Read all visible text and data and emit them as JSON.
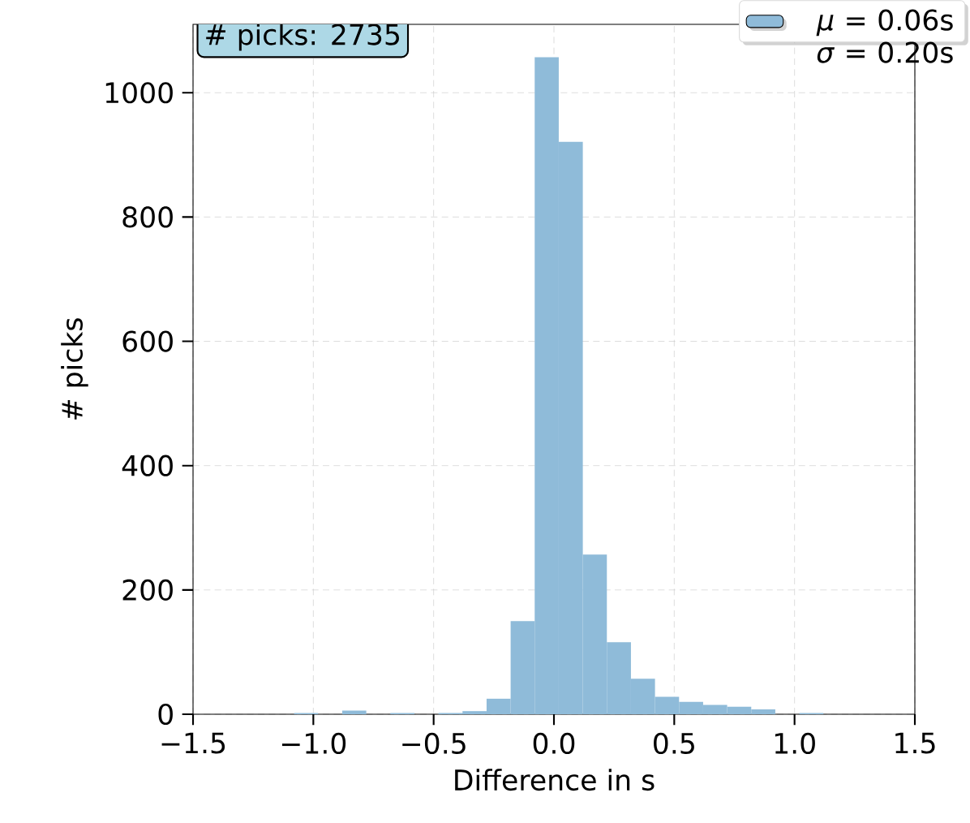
{
  "chart_data": {
    "type": "histogram",
    "xlabel": "Difference in s",
    "ylabel": "# picks",
    "bins": [
      -1.08,
      -0.98,
      -0.88,
      -0.78,
      -0.68,
      -0.58,
      -0.48,
      -0.38,
      -0.28,
      -0.18,
      -0.08,
      0.02,
      0.12,
      0.22,
      0.32,
      0.42,
      0.52,
      0.62,
      0.72,
      0.82,
      0.92,
      1.02,
      1.12
    ],
    "series": [
      {
        "name": "*μ* = 0.06s *σ* = 0.20s",
        "color": "#8fbbd9",
        "values": [
          2,
          0,
          6,
          0,
          2,
          0,
          2,
          5,
          25,
          150,
          1057,
          921,
          257,
          116,
          57,
          28,
          20,
          15,
          12,
          8,
          0,
          2
        ]
      }
    ],
    "xlim": [
      -1.5,
      1.5
    ],
    "xticks": [
      {
        "value": -1.5,
        "label": "−1.5"
      },
      {
        "value": -1.0,
        "label": "−1.0"
      },
      {
        "value": -0.5,
        "label": "−0.5"
      },
      {
        "value": 0.0,
        "label": "0.0"
      },
      {
        "value": 0.5,
        "label": "0.5"
      },
      {
        "value": 1.0,
        "label": "1.0"
      },
      {
        "value": 1.5,
        "label": "1.5"
      }
    ],
    "ylim": [
      0,
      1110
    ],
    "yticks": [
      0,
      200,
      400,
      600,
      800,
      1000
    ],
    "annotations": [
      "# picks: 2735"
    ],
    "grid": true,
    "legend": "top right"
  }
}
